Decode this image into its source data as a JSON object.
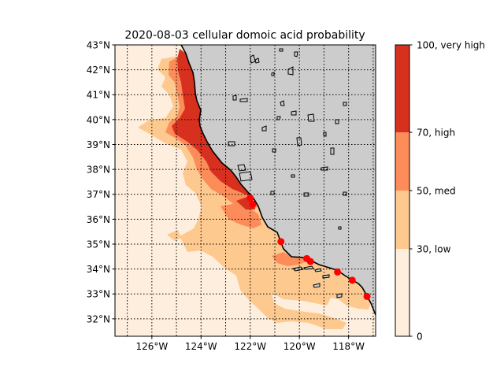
{
  "title": "2020-08-03 cellular domoic acid probability",
  "colors": {
    "land": "#cccccc",
    "coast": "#000000",
    "site": "#ff0000",
    "bin_0_30": "#feeedd",
    "bin_30_50": "#fdc98e",
    "bin_50_70": "#fc8c59",
    "bin_70_100": "#d7301f"
  },
  "map": {
    "lon_range": [
      -127.5,
      -116.9
    ],
    "lat_range": [
      31.3,
      43.0
    ],
    "lat_ticks": [
      {
        "value": 43,
        "label": "43°N"
      },
      {
        "value": 42,
        "label": "42°N"
      },
      {
        "value": 41,
        "label": "41°N"
      },
      {
        "value": 40,
        "label": "40°N"
      },
      {
        "value": 39,
        "label": "39°N"
      },
      {
        "value": 38,
        "label": "38°N"
      },
      {
        "value": 37,
        "label": "37°N"
      },
      {
        "value": 36,
        "label": "36°N"
      },
      {
        "value": 35,
        "label": "35°N"
      },
      {
        "value": 34,
        "label": "34°N"
      },
      {
        "value": 33,
        "label": "33°N"
      },
      {
        "value": 32,
        "label": "32°N"
      }
    ],
    "lon_ticks": [
      {
        "value": -126,
        "label": "126°W"
      },
      {
        "value": -124,
        "label": "124°W"
      },
      {
        "value": -122,
        "label": "122°W"
      },
      {
        "value": -120,
        "label": "120°W"
      },
      {
        "value": -118,
        "label": "118°W"
      }
    ],
    "grid_lons": [
      -127,
      -126,
      -125,
      -124,
      -123,
      -122,
      -121,
      -120,
      -119,
      -118,
      -117
    ],
    "grid_lats": [
      43,
      42,
      41,
      40,
      39,
      38,
      37,
      36,
      35,
      34,
      33,
      32
    ],
    "grid": "dotted"
  },
  "colorbar": {
    "levels": [
      0,
      30,
      50,
      70,
      100
    ],
    "ticks": [
      {
        "value": 100,
        "label": "100, very high"
      },
      {
        "value": 70,
        "label": "70, high"
      },
      {
        "value": 50,
        "label": "50, med"
      },
      {
        "value": 30,
        "label": "30, low"
      },
      {
        "value": 0,
        "label": "0"
      }
    ]
  },
  "sites": [
    {
      "lon": -122.0,
      "lat": 36.85
    },
    {
      "lon": -121.9,
      "lat": 36.6
    },
    {
      "lon": -120.75,
      "lat": 35.1
    },
    {
      "lon": -119.7,
      "lat": 34.42
    },
    {
      "lon": -119.55,
      "lat": 34.3
    },
    {
      "lon": -118.45,
      "lat": 33.88
    },
    {
      "lon": -117.85,
      "lat": 33.55
    },
    {
      "lon": -117.25,
      "lat": 32.9
    }
  ]
}
